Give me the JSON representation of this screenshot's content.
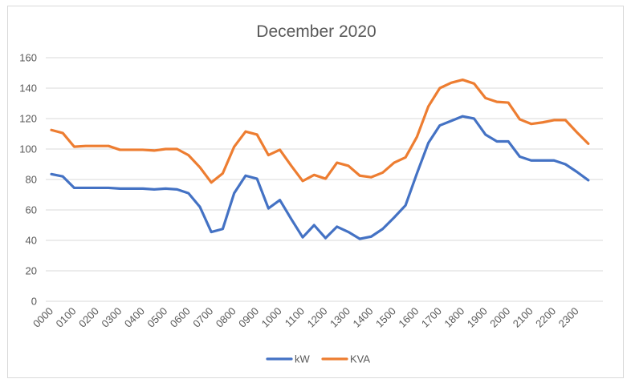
{
  "chart_data": {
    "type": "line",
    "title": "December 2020",
    "xlabel": "",
    "ylabel": "",
    "ylim": [
      0,
      160
    ],
    "yticks": [
      0,
      20,
      40,
      60,
      80,
      100,
      120,
      140,
      160
    ],
    "grid": true,
    "legend_position": "bottom",
    "x": [
      "0000",
      "0030",
      "0100",
      "0130",
      "0200",
      "0230",
      "0300",
      "0330",
      "0400",
      "0430",
      "0500",
      "0530",
      "0600",
      "0630",
      "0700",
      "0730",
      "0800",
      "0830",
      "0900",
      "0930",
      "1000",
      "1030",
      "1100",
      "1130",
      "1200",
      "1230",
      "1300",
      "1330",
      "1400",
      "1430",
      "1500",
      "1530",
      "1600",
      "1630",
      "1700",
      "1730",
      "1800",
      "1830",
      "1900",
      "1930",
      "2000",
      "2030",
      "2100",
      "2130",
      "2200",
      "2230",
      "2300",
      "2330"
    ],
    "x_tick_labels": [
      "0000",
      "0100",
      "0200",
      "0300",
      "0400",
      "0500",
      "0600",
      "0700",
      "0800",
      "0900",
      "1000",
      "1100",
      "1200",
      "1300",
      "1400",
      "1500",
      "1600",
      "1700",
      "1800",
      "1900",
      "2000",
      "2100",
      "2200",
      "2300"
    ],
    "series": [
      {
        "name": "kW",
        "color": "#4472c4",
        "values": [
          83.5,
          82,
          74.5,
          74.5,
          74.5,
          74.5,
          74,
          74,
          74,
          73.5,
          74,
          73.5,
          71,
          62,
          45.5,
          47.5,
          71,
          82.5,
          80.5,
          61,
          66.5,
          54,
          42,
          50,
          41.5,
          49,
          45.5,
          41,
          42.5,
          47.5,
          55,
          63,
          84,
          104,
          115.5,
          118.5,
          121.5,
          120,
          109.5,
          105,
          105,
          95,
          92.5,
          92.5,
          92.5,
          90,
          85,
          79.5
        ]
      },
      {
        "name": "KVA",
        "color": "#ed7d31",
        "values": [
          112.5,
          110.5,
          101.5,
          102,
          102,
          102,
          99.5,
          99.5,
          99.5,
          99,
          100,
          100,
          96,
          88,
          78,
          84,
          101.5,
          111.5,
          109.5,
          96,
          99.5,
          89,
          79,
          83,
          80.5,
          91,
          89,
          82.5,
          81.5,
          84.5,
          91,
          94.5,
          108,
          128,
          140,
          143.5,
          145.5,
          143,
          133.5,
          131,
          130.5,
          119.5,
          116.5,
          117.5,
          119,
          119,
          111,
          103.5
        ]
      }
    ]
  }
}
